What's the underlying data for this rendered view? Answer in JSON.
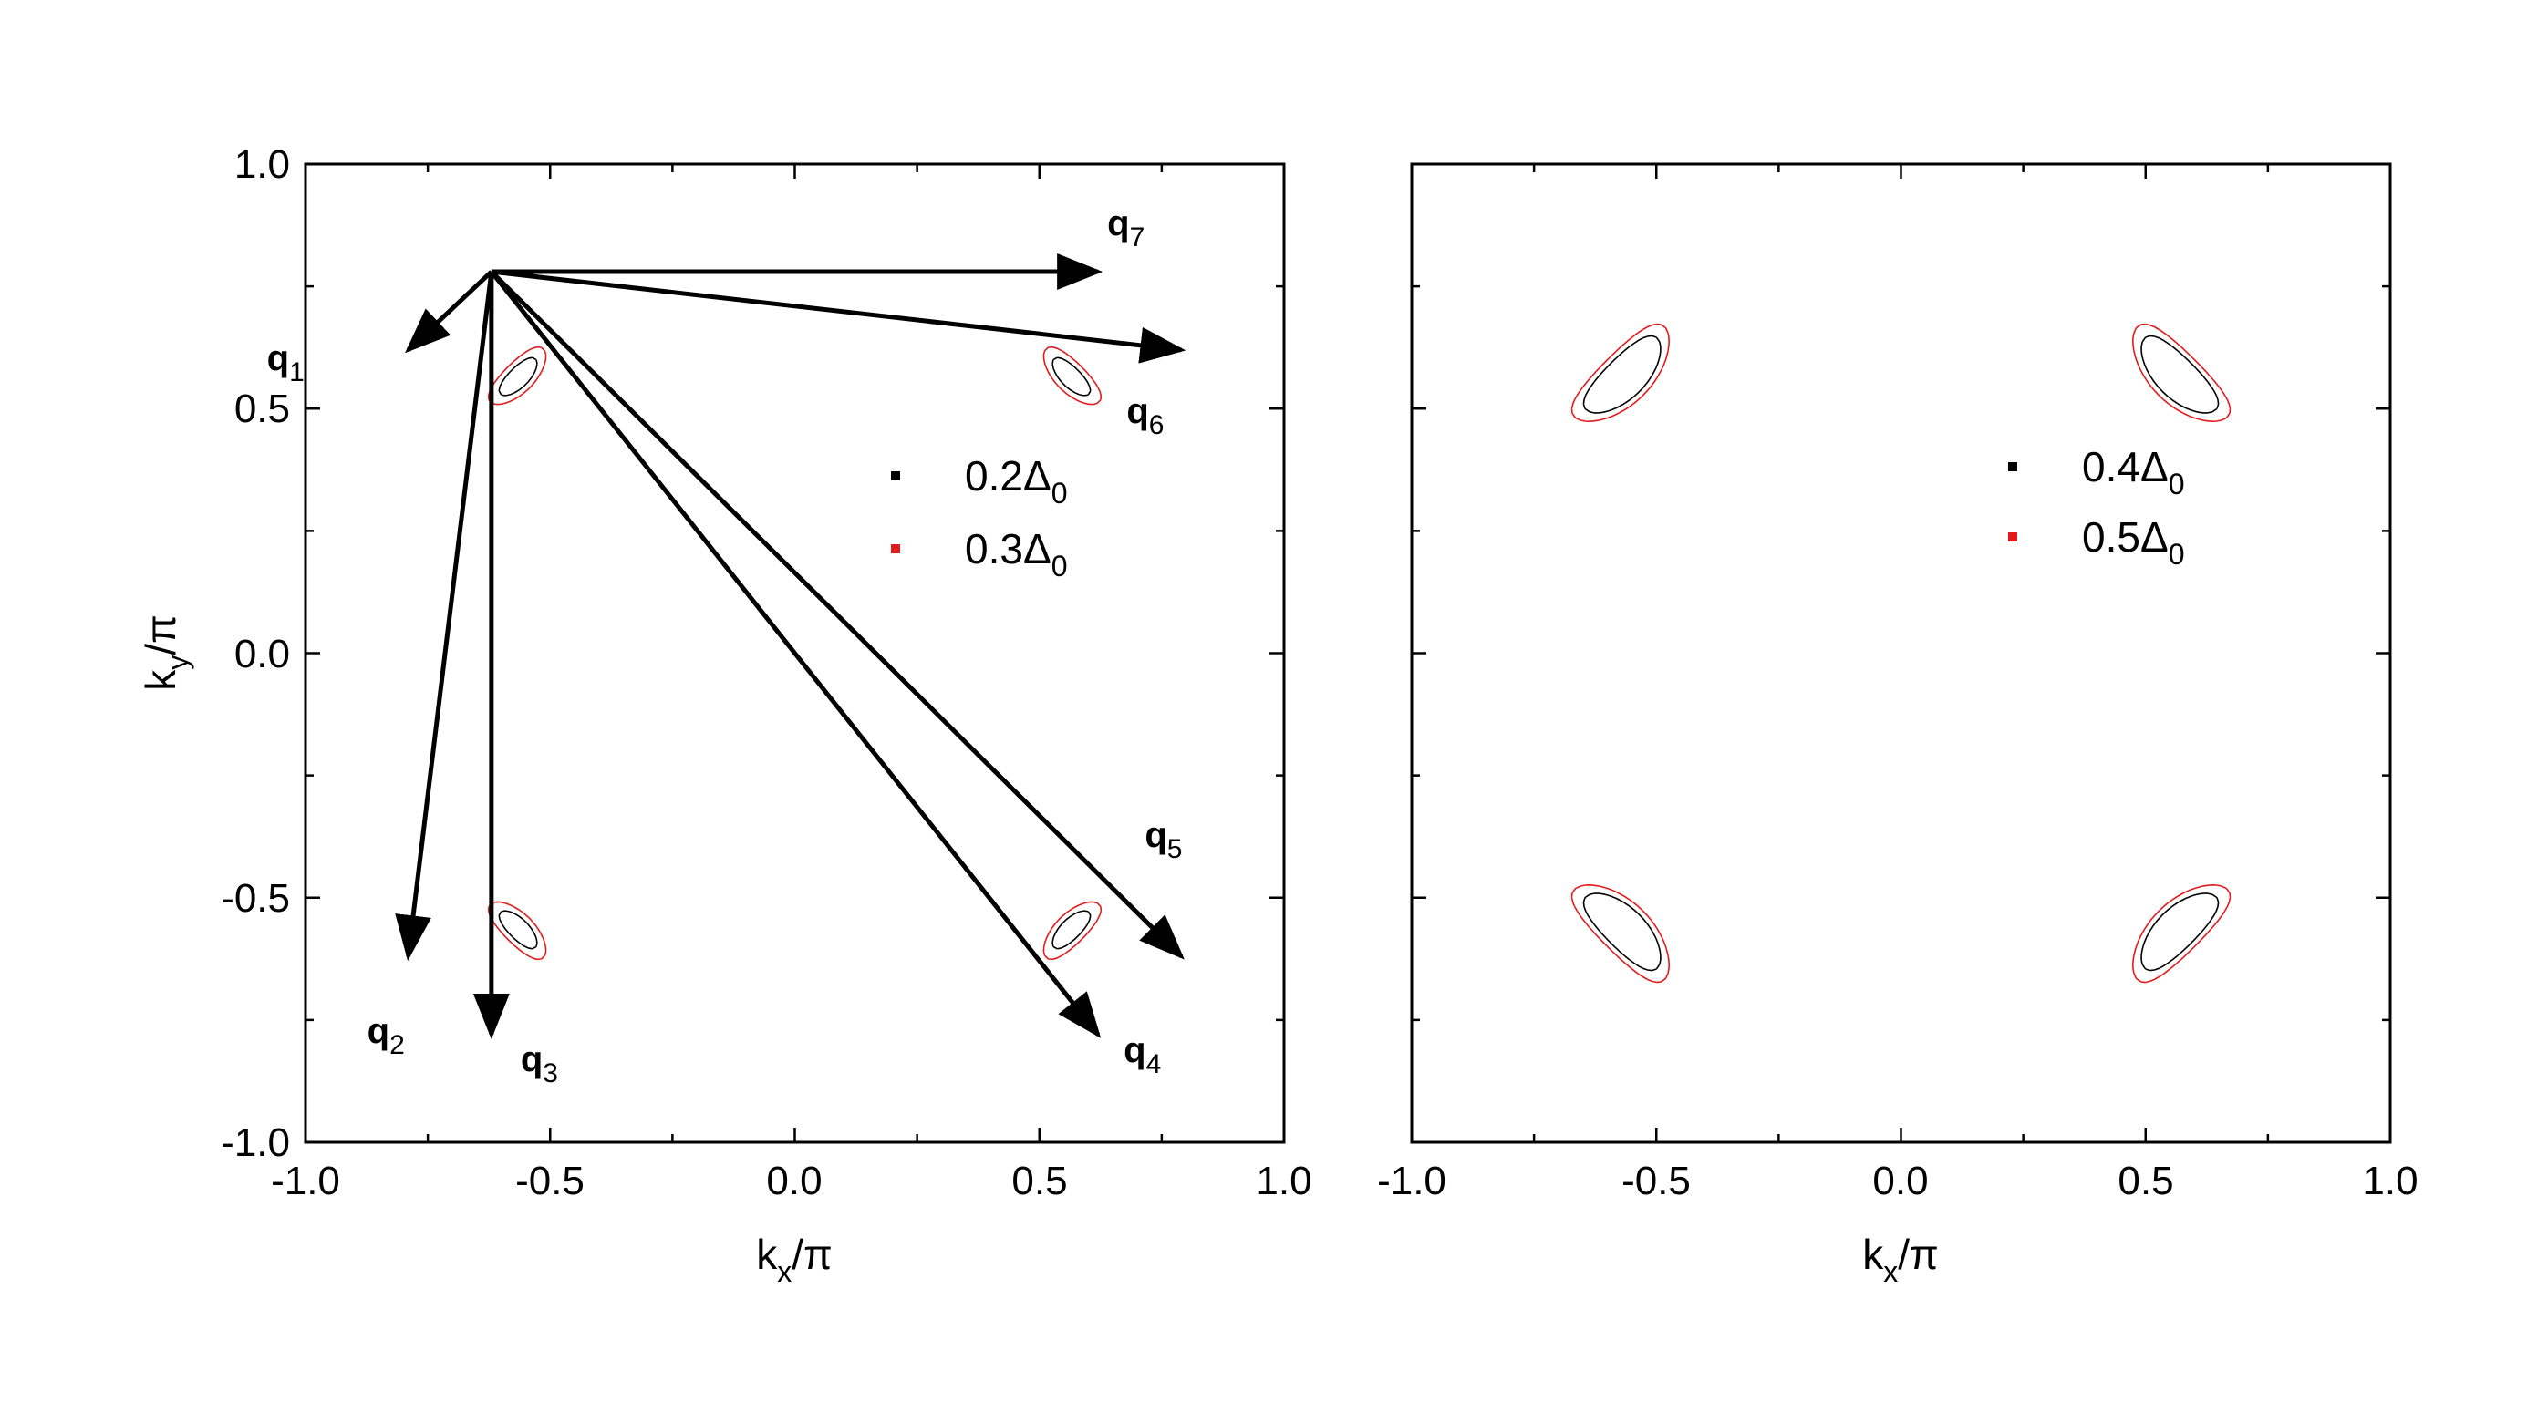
{
  "chart_data": [
    {
      "type": "line",
      "panel": "left",
      "xlim": [
        -1.0,
        1.0
      ],
      "ylim": [
        -1.0,
        1.0
      ],
      "xticks": [
        "-1.0",
        "-0.5",
        "0.0",
        "0.5",
        "1.0"
      ],
      "yticks": [
        "-1.0",
        "-0.5",
        "0.0",
        "0.5",
        "1.0"
      ],
      "xlabel": {
        "main": "k",
        "sub": "x",
        "tail": "/π"
      },
      "ylabel": {
        "main": "k",
        "sub": "y",
        "tail": "/π"
      },
      "grid": false,
      "legend_position": "right-middle",
      "series": [
        {
          "name_main": "0.2Δ",
          "name_sub": "0",
          "color": "#000000",
          "contour_level": 0.2
        },
        {
          "name_main": "0.3Δ",
          "name_sub": "0",
          "color": "#e31a1c",
          "contour_level": 0.3
        }
      ],
      "origin": [
        -0.62,
        0.78
      ],
      "vectors": [
        {
          "main": "q",
          "sub": "1",
          "end": [
            -0.79,
            0.62
          ]
        },
        {
          "main": "q",
          "sub": "2",
          "end": [
            -0.79,
            -0.62
          ]
        },
        {
          "main": "q",
          "sub": "3",
          "end": [
            -0.62,
            -0.78
          ]
        },
        {
          "main": "q",
          "sub": "4",
          "end": [
            0.62,
            -0.78
          ]
        },
        {
          "main": "q",
          "sub": "5",
          "end": [
            0.79,
            -0.62
          ]
        },
        {
          "main": "q",
          "sub": "6",
          "end": [
            0.79,
            0.62
          ]
        },
        {
          "main": "q",
          "sub": "7",
          "end": [
            0.62,
            0.78
          ]
        }
      ]
    },
    {
      "type": "line",
      "panel": "right",
      "xlim": [
        -1.0,
        1.0
      ],
      "ylim": [
        -1.0,
        1.0
      ],
      "xticks": [
        "-1.0",
        "-0.5",
        "0.0",
        "0.5",
        "1.0"
      ],
      "xlabel": {
        "main": "k",
        "sub": "x",
        "tail": "/π"
      },
      "grid": false,
      "legend_position": "right-middle",
      "series": [
        {
          "name_main": "0.4Δ",
          "name_sub": "0",
          "color": "#000000",
          "contour_level": 0.4
        },
        {
          "name_main": "0.5Δ",
          "name_sub": "0",
          "color": "#e31a1c",
          "contour_level": 0.5
        }
      ]
    }
  ]
}
